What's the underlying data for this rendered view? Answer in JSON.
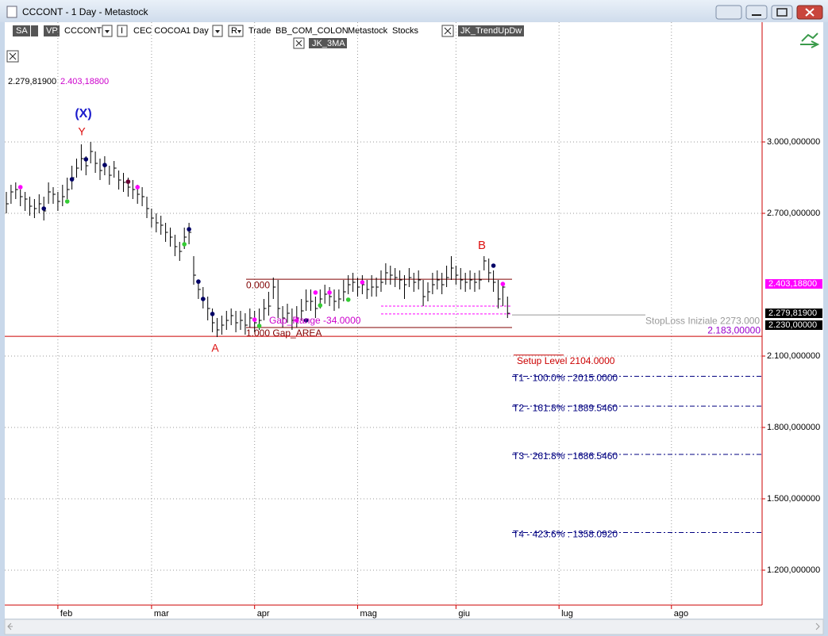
{
  "window": {
    "title": "CCCONT - 1 Day - Metastock"
  },
  "toolbar": {
    "items": [
      "SA",
      "VP",
      "CCCONT",
      "I",
      "CEC COCOA",
      "1 Day",
      "R",
      "Trade",
      "BB_COM_COLON",
      "Metastock",
      "Stocks",
      "JK_TrendUpDw",
      "JK_3MA"
    ]
  },
  "chart_data": {
    "type": "ohlc",
    "color": "#000000",
    "close": [
      2740,
      2790,
      2800,
      2770,
      2760,
      2730,
      2720,
      2740,
      2710,
      2790,
      2780,
      2750,
      2770,
      2800,
      2850,
      2890,
      2930,
      2900,
      2960,
      2910,
      2880,
      2900,
      2860,
      2890,
      2840,
      2830,
      2810,
      2800,
      2780,
      2770,
      2720,
      2680,
      2660,
      2650,
      2620,
      2600,
      2560,
      2540,
      2600,
      2620,
      2440,
      2380,
      2340,
      2300,
      2240,
      2210,
      2230,
      2250,
      2270,
      2240,
      2250,
      2230,
      2260,
      2240,
      2250,
      2300,
      2310,
      2390,
      2300,
      2260,
      2280,
      2250,
      2260,
      2290,
      2330,
      2330,
      2300,
      2340,
      2360,
      2350,
      2330,
      2340,
      2370,
      2400,
      2410,
      2390,
      2400,
      2380,
      2390,
      2390,
      2410,
      2450,
      2440,
      2430,
      2420,
      2400,
      2430,
      2410,
      2420,
      2350,
      2370,
      2400,
      2420,
      2400,
      2430,
      2470,
      2440,
      2420,
      2410,
      2420,
      2410,
      2420,
      2500,
      2450,
      2410,
      2340,
      2390,
      2279.819
    ],
    "high": [
      2790,
      2820,
      2830,
      2800,
      2790,
      2770,
      2760,
      2780,
      2770,
      2830,
      2810,
      2790,
      2820,
      2850,
      2900,
      2930,
      2990,
      2940,
      3000,
      2960,
      2930,
      2940,
      2900,
      2920,
      2880,
      2870,
      2850,
      2840,
      2820,
      2810,
      2770,
      2720,
      2700,
      2690,
      2660,
      2640,
      2610,
      2580,
      2640,
      2660,
      2520,
      2420,
      2390,
      2350,
      2300,
      2260,
      2270,
      2290,
      2300,
      2290,
      2290,
      2280,
      2300,
      2290,
      2300,
      2340,
      2370,
      2430,
      2420,
      2310,
      2320,
      2300,
      2310,
      2340,
      2380,
      2380,
      2350,
      2380,
      2400,
      2390,
      2380,
      2380,
      2420,
      2440,
      2450,
      2430,
      2440,
      2420,
      2440,
      2430,
      2460,
      2490,
      2480,
      2470,
      2460,
      2440,
      2470,
      2450,
      2460,
      2420,
      2410,
      2450,
      2460,
      2450,
      2480,
      2520,
      2480,
      2470,
      2450,
      2460,
      2450,
      2460,
      2520,
      2510,
      2460,
      2420,
      2410,
      2350
    ],
    "low": [
      2700,
      2740,
      2760,
      2730,
      2710,
      2690,
      2680,
      2700,
      2670,
      2740,
      2740,
      2710,
      2730,
      2760,
      2800,
      2850,
      2880,
      2860,
      2910,
      2870,
      2840,
      2860,
      2820,
      2850,
      2800,
      2790,
      2770,
      2760,
      2740,
      2730,
      2680,
      2640,
      2620,
      2610,
      2580,
      2560,
      2520,
      2500,
      2550,
      2570,
      2400,
      2340,
      2300,
      2250,
      2200,
      2180,
      2190,
      2210,
      2230,
      2200,
      2210,
      2190,
      2220,
      2200,
      2210,
      2250,
      2270,
      2340,
      2260,
      2220,
      2240,
      2210,
      2220,
      2250,
      2290,
      2290,
      2260,
      2300,
      2320,
      2310,
      2290,
      2300,
      2330,
      2360,
      2370,
      2350,
      2360,
      2340,
      2350,
      2350,
      2370,
      2400,
      2400,
      2390,
      2380,
      2340,
      2390,
      2370,
      2380,
      2310,
      2330,
      2360,
      2380,
      2360,
      2390,
      2420,
      2400,
      2380,
      2370,
      2380,
      2370,
      2380,
      2460,
      2410,
      2370,
      2300,
      2310,
      2260
    ],
    "signals": {
      "x": [
        3,
        8,
        13,
        14,
        17,
        21,
        26,
        28,
        38,
        39,
        41,
        42,
        44,
        53,
        54,
        62,
        64,
        66,
        67,
        69,
        73,
        76,
        104,
        106
      ],
      "values": [
        2810,
        2720,
        2750,
        2843,
        2927,
        2903,
        2833,
        2810,
        2570,
        2633,
        2413,
        2340,
        2277,
        2253,
        2227,
        2250,
        2250,
        2367,
        2313,
        2367,
        2337,
        2410,
        2480,
        2403
      ],
      "colors": [
        "#ff00ff",
        "#000066",
        "#33cc33",
        "#000066",
        "#000066",
        "#000066",
        "#660033",
        "#ff00ff",
        "#33cc33",
        "#000066",
        "#000066",
        "#000066",
        "#000066",
        "#ff00ff",
        "#33cc33",
        "#ff00ff",
        "#000066",
        "#ff00ff",
        "#33cc33",
        "#ff00ff",
        "#33cc33",
        "#ff00ff",
        "#000066",
        "#ff00ff"
      ]
    },
    "xlim": [
      -0.34,
      161.36
    ],
    "xticks": [
      {
        "value": 11,
        "label": "feb"
      },
      {
        "value": 31,
        "label": "mar"
      },
      {
        "value": 53,
        "label": "apr"
      },
      {
        "value": 75,
        "label": "mag"
      },
      {
        "value": 96,
        "label": "giu"
      },
      {
        "value": 118,
        "label": "lug"
      },
      {
        "value": 142,
        "label": "ago"
      }
    ],
    "ylim": [
      1053.3,
      3503.3
    ],
    "yticks": [
      {
        "value": 1200,
        "label": "1.200,000000"
      },
      {
        "value": 1500,
        "label": "1.500,000000"
      },
      {
        "value": 1800,
        "label": "1.800,000000"
      },
      {
        "value": 2100,
        "label": "2.100,000000"
      },
      {
        "value": 2700,
        "label": "2.700,000000"
      },
      {
        "value": 3000,
        "label": "3.000,000000"
      }
    ],
    "grid": true,
    "levels": [
      {
        "value": 2423,
        "label": "0.000",
        "color": "#800000"
      },
      {
        "value": 2220,
        "label": "1.000 Gap_AREA",
        "color": "#800000"
      },
      {
        "value": 2310,
        "color": "#ff00ff"
      },
      {
        "value": 2277,
        "color": "#ff00ff"
      },
      {
        "value": 2273,
        "label": "StopLoss Iniziale 2273.000",
        "color": "#999999"
      },
      {
        "value": 2183,
        "label": "2.183,00000",
        "color": "#cc0000",
        "label_color": "#9900cc"
      },
      {
        "value": 2104,
        "label": "Setup Level 2104.0000",
        "color": "#cc0000"
      },
      {
        "value": 2015,
        "label": "T1 - 100.0% : 2015.0000",
        "color": "#000080"
      },
      {
        "value": 1889.546,
        "label": "T2 - 161.8% : 1889.5460",
        "color": "#000080"
      },
      {
        "value": 1686.546,
        "label": "T3 - 261.8% : 1686.5460",
        "color": "#000080"
      },
      {
        "value": 1358.092,
        "label": "T4 - 423.6% : 1358.0920",
        "color": "#000080"
      }
    ],
    "price_tags": [
      {
        "value": 2403.188,
        "label": "2.403,18800",
        "color": "#ff00ff"
      },
      {
        "value": 2279.819,
        "label": "2.279,81900",
        "color": "#000000"
      },
      {
        "value": 2230,
        "label": "2.230,00000",
        "color": "#000000"
      }
    ],
    "annotations": [
      {
        "text": "(X)",
        "color": "#1a1acc"
      },
      {
        "text": "Y",
        "color": "#dd1111"
      },
      {
        "text": "A",
        "color": "#dd1111"
      },
      {
        "text": "B",
        "color": "#dd1111"
      },
      {
        "text": "Gap_Range -34.0000",
        "color": "#cc00cc"
      }
    ]
  }
}
